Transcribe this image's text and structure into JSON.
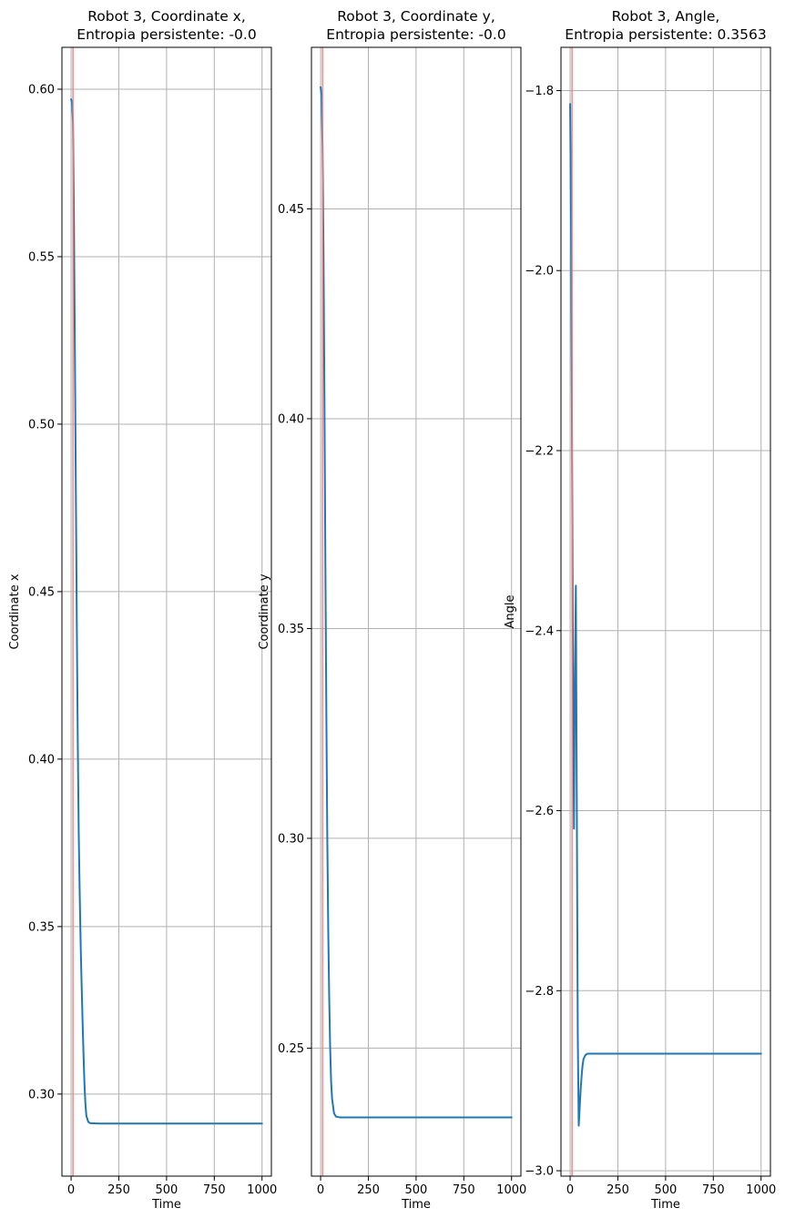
{
  "colors": {
    "series": "#1f77b4",
    "marker": "#f08080",
    "grid": "#b0b0b0"
  },
  "chart_data": [
    {
      "type": "line",
      "title_line1": "Robot 3, Coordinate x,",
      "title_line2": "Entropia persistente: -0.0",
      "xlabel": "Time",
      "ylabel": "Coordinate x",
      "xlim": [
        -48,
        1049
      ],
      "ylim": [
        0.2755,
        0.6125
      ],
      "xticks": [
        0,
        250,
        500,
        750,
        1000
      ],
      "xtick_labels": [
        "0",
        "250",
        "500",
        "750",
        "1000"
      ],
      "yticks": [
        0.3,
        0.35,
        0.4,
        0.45,
        0.5,
        0.55,
        0.6
      ],
      "ytick_labels": [
        "0.30",
        "0.35",
        "0.40",
        "0.45",
        "0.50",
        "0.55",
        "0.60"
      ],
      "grid": true,
      "vline_x": 10,
      "series": [
        {
          "x": [
            0,
            5,
            10,
            15,
            20,
            25,
            30,
            35,
            40,
            45,
            50,
            55,
            60,
            65,
            70,
            75,
            80,
            90,
            100,
            150,
            250,
            500,
            750,
            1000
          ],
          "y": [
            0.597,
            0.596,
            0.59,
            0.56,
            0.52,
            0.48,
            0.44,
            0.405,
            0.378,
            0.36,
            0.345,
            0.333,
            0.322,
            0.312,
            0.303,
            0.297,
            0.2935,
            0.2917,
            0.2913,
            0.2912,
            0.2912,
            0.2912,
            0.2912,
            0.2912
          ]
        }
      ]
    },
    {
      "type": "line",
      "title_line1": "Robot 3, Coordinate y,",
      "title_line2": "Entropia persistente: -0.0",
      "xlabel": "Time",
      "ylabel": "Coordinate y",
      "xlim": [
        -48,
        1049
      ],
      "ylim": [
        0.2195,
        0.4885
      ],
      "xticks": [
        0,
        250,
        500,
        750,
        1000
      ],
      "xtick_labels": [
        "0",
        "250",
        "500",
        "750",
        "1000"
      ],
      "yticks": [
        0.25,
        0.3,
        0.35,
        0.4,
        0.45
      ],
      "ytick_labels": [
        "0.25",
        "0.30",
        "0.35",
        "0.40",
        "0.45"
      ],
      "grid": true,
      "vline_x": 10,
      "series": [
        {
          "x": [
            0,
            5,
            10,
            15,
            20,
            25,
            30,
            35,
            40,
            45,
            50,
            55,
            60,
            70,
            80,
            100,
            150,
            250,
            500,
            750,
            1000
          ],
          "y": [
            0.479,
            0.477,
            0.465,
            0.44,
            0.405,
            0.365,
            0.33,
            0.3,
            0.278,
            0.262,
            0.25,
            0.242,
            0.238,
            0.2345,
            0.2337,
            0.2335,
            0.2335,
            0.2335,
            0.2335,
            0.2335,
            0.2335
          ]
        }
      ]
    },
    {
      "type": "line",
      "title_line1": "Robot 3, Angle,",
      "title_line2": "Entropia persistente: 0.3563",
      "xlabel": "Time",
      "ylabel": "Angle",
      "xlim": [
        -48,
        1049
      ],
      "ylim": [
        -3.006,
        -1.752
      ],
      "xticks": [
        0,
        250,
        500,
        750,
        1000
      ],
      "xtick_labels": [
        "0",
        "250",
        "500",
        "750",
        "1000"
      ],
      "yticks": [
        -3.0,
        -2.8,
        -2.6,
        -2.4,
        -2.2,
        -2.0,
        -1.8
      ],
      "ytick_labels": [
        "−3.0",
        "−2.8",
        "−2.6",
        "−2.4",
        "−2.2",
        "−2.0",
        "−1.8"
      ],
      "grid": true,
      "vline_x": 10,
      "series": [
        {
          "x": [
            0,
            5,
            10,
            15,
            20,
            25,
            30,
            35,
            40,
            45,
            50,
            55,
            60,
            65,
            70,
            80,
            90,
            100,
            150,
            250,
            500,
            750,
            1000
          ],
          "y": [
            -1.815,
            -1.95,
            -2.2,
            -2.45,
            -2.62,
            -2.45,
            -2.35,
            -2.6,
            -2.85,
            -2.95,
            -2.93,
            -2.91,
            -2.895,
            -2.883,
            -2.876,
            -2.8715,
            -2.87,
            -2.87,
            -2.87,
            -2.87,
            -2.87,
            -2.87,
            -2.87
          ]
        }
      ]
    }
  ]
}
